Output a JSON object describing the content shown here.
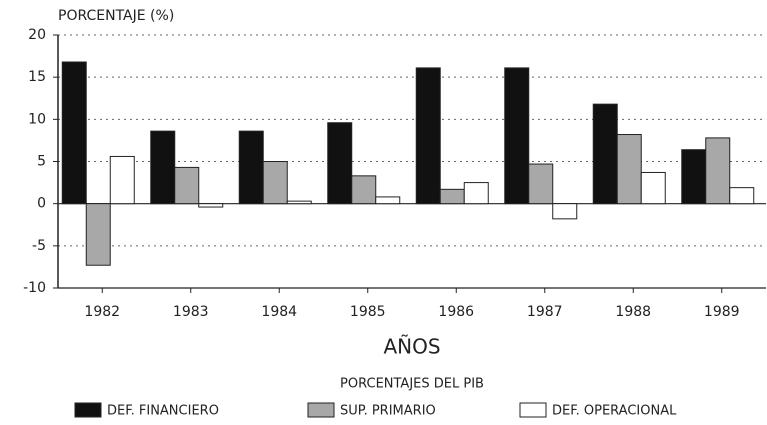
{
  "chart_data": {
    "type": "bar",
    "title": "PORCENTAJE (%)",
    "x_label": "AÑOS",
    "legend_title": "PORCENTAJES DEL PIB",
    "categories": [
      "1982",
      "1983",
      "1984",
      "1985",
      "1986",
      "1987",
      "1988",
      "1989"
    ],
    "series": [
      {
        "name": "DEF. FINANCIERO",
        "color": "#111111",
        "values": [
          16.8,
          8.6,
          8.6,
          9.6,
          16.1,
          16.1,
          11.8,
          6.4
        ]
      },
      {
        "name": "SUP. PRIMARIO",
        "color": "#a8a8a8",
        "values": [
          -7.3,
          4.3,
          5.0,
          3.3,
          1.7,
          4.7,
          8.2,
          7.8
        ]
      },
      {
        "name": "DEF. OPERACIONAL",
        "color": "#ffffff",
        "values": [
          5.6,
          -0.4,
          0.3,
          0.8,
          2.5,
          -1.8,
          3.7,
          1.9
        ]
      }
    ],
    "ylim": [
      -10,
      20
    ],
    "yticks": [
      -10,
      -5,
      0,
      5,
      10,
      15,
      20
    ],
    "grid": true,
    "legend": "bottom"
  }
}
